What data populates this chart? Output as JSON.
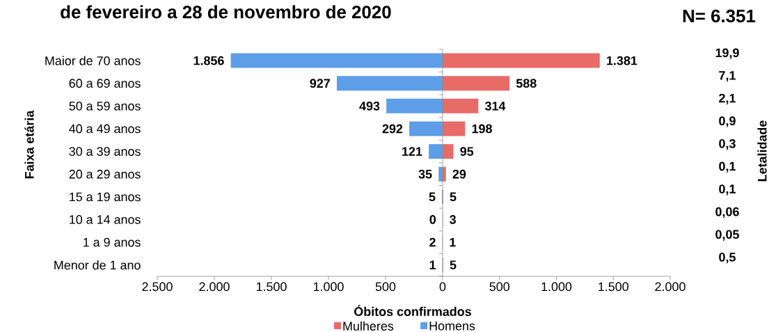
{
  "chart_data": [
    {
      "type": "bar",
      "orientation": "horizontal",
      "title": "de fevereiro a 28 de novembro de 2020",
      "annotations": [
        "N= 6.351"
      ],
      "categories": [
        "Maior de 70 anos",
        "60 a 69 anos",
        "50 a 59 anos",
        "40 a 49 anos",
        "30 a 39 anos",
        "20 a 29 anos",
        "15 a 19 anos",
        "10 a 14 anos",
        "1 a 9 anos",
        "Menor de 1 ano"
      ],
      "series": [
        {
          "name": "Homens",
          "color": "#5e9de8",
          "values": [
            1856,
            927,
            493,
            292,
            121,
            35,
            5,
            0,
            2,
            1
          ],
          "value_labels": [
            "1.856",
            "927",
            "493",
            "292",
            "121",
            "35",
            "5",
            "0",
            "2",
            "1"
          ]
        }
      ],
      "xlim": [
        2500,
        0
      ],
      "xticks": [
        {
          "value": 2500,
          "label": "2.500"
        },
        {
          "value": 2000,
          "label": "2.000"
        },
        {
          "value": 1500,
          "label": "1.500"
        },
        {
          "value": 1000,
          "label": "1.000"
        },
        500,
        0
      ],
      "xlabel": "Óbitos confirmados",
      "ylabel": "Faixa etária",
      "legend": "bottom"
    },
    {
      "type": "bar",
      "orientation": "horizontal",
      "categories": [
        null,
        null,
        null,
        null,
        null,
        null,
        null,
        null,
        null,
        null
      ],
      "series": [
        {
          "name": "Mulheres",
          "color": "#e86b67",
          "values": [
            1381,
            588,
            314,
            198,
            95,
            29,
            5,
            3,
            1,
            5
          ],
          "value_labels": [
            "1.381",
            "588",
            "314",
            "198",
            "95",
            "29",
            "5",
            "3",
            "1",
            "5"
          ]
        }
      ],
      "xlim": [
        0,
        2000
      ],
      "xticks": [
        500,
        {
          "value": 1000,
          "label": "1.000"
        },
        {
          "value": 1500,
          "label": "1.500"
        },
        {
          "value": 2000,
          "label": "2.000"
        }
      ],
      "y2label": "Letalidade",
      "y2_categories": [
        "19,9",
        "7,1",
        "2,1",
        "0,9",
        "0,3",
        "0,1",
        "0,1",
        "0,06",
        "0,05",
        "0,5"
      ],
      "legend": "bottom"
    }
  ]
}
